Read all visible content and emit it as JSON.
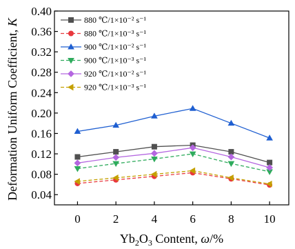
{
  "chart_data": {
    "type": "line",
    "xlabel": "Yb2O3 Content, ω/%",
    "xlabel_parts": {
      "pre": "Yb",
      "sub1": "2",
      "mid": "O",
      "sub2": "3",
      "post": " Content, ",
      "omega": "ω",
      "unit": "/%"
    },
    "ylabel": "Deformation Uniform Coefficient, K",
    "ylabel_parts": {
      "text": "Deformation Uniform Coefficient, ",
      "symbol": "K"
    },
    "x": [
      0,
      2,
      4,
      6,
      8,
      10
    ],
    "x_ticks": [
      "0",
      "2",
      "4",
      "6",
      "8",
      "10"
    ],
    "xlim": [
      -1.2,
      11
    ],
    "ylim": [
      0.02,
      0.4
    ],
    "y_ticks": [
      "0.04",
      "0.08",
      "0.12",
      "0.16",
      "0.20",
      "0.24",
      "0.28",
      "0.32",
      "0.36",
      "0.40"
    ],
    "y_tick_values": [
      0.04,
      0.08,
      0.12,
      0.16,
      0.2,
      0.24,
      0.28,
      0.32,
      0.36,
      0.4
    ],
    "grid": false,
    "legend_position": "top-left",
    "series": [
      {
        "name": "880 ℃/1×10⁻² s⁻¹",
        "values": [
          0.114,
          0.124,
          0.134,
          0.137,
          0.124,
          0.103
        ],
        "color": "#505050",
        "marker": "square",
        "dash": "solid"
      },
      {
        "name": "880 ℃/1×10⁻³ s⁻¹",
        "values": [
          0.062,
          0.069,
          0.076,
          0.083,
          0.071,
          0.059
        ],
        "color": "#e8383d",
        "marker": "circle",
        "dash": "dashed"
      },
      {
        "name": "900 ℃/1×10⁻² s⁻¹",
        "values": [
          0.164,
          0.176,
          0.194,
          0.209,
          0.18,
          0.151
        ],
        "color": "#1f5fd1",
        "marker": "triangle-up",
        "dash": "solid"
      },
      {
        "name": "900 ℃/1×10⁻³ s⁻¹",
        "values": [
          0.091,
          0.101,
          0.11,
          0.12,
          0.101,
          0.085
        ],
        "color": "#2eab5c",
        "marker": "triangle-down",
        "dash": "dashed"
      },
      {
        "name": "920 ℃/1×10⁻² s⁻¹",
        "values": [
          0.102,
          0.113,
          0.121,
          0.132,
          0.114,
          0.093
        ],
        "color": "#b466e0",
        "marker": "diamond",
        "dash": "solid"
      },
      {
        "name": "920 ℃/1×10⁻³ s⁻¹",
        "values": [
          0.066,
          0.073,
          0.08,
          0.087,
          0.073,
          0.061
        ],
        "color": "#c4a000",
        "marker": "triangle-left",
        "dash": "dashed"
      }
    ]
  }
}
